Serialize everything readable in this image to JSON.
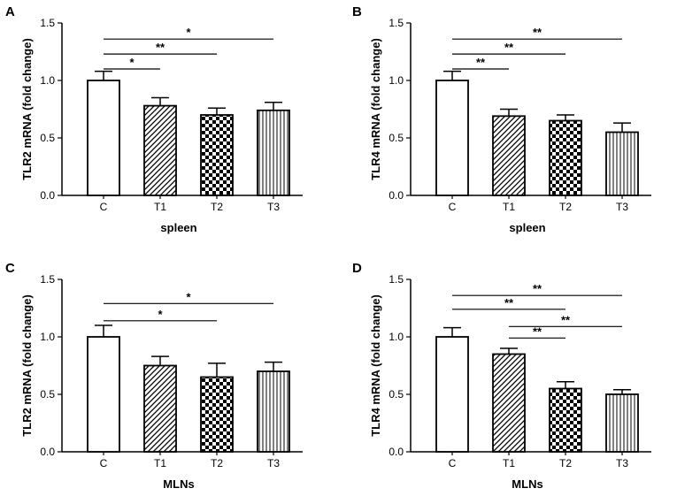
{
  "colors": {
    "ink": "#000000",
    "background": "#ffffff"
  },
  "chart_data": [
    {
      "panel": "A",
      "type": "bar",
      "ylabel": "TLR2 mRNA (fold change)",
      "xlabel": "spleen",
      "categories": [
        "C",
        "T1",
        "T2",
        "T3"
      ],
      "values": [
        1.0,
        0.78,
        0.7,
        0.74
      ],
      "errors": [
        0.08,
        0.07,
        0.06,
        0.07
      ],
      "patterns": [
        "none",
        "diagonal",
        "checker",
        "vertical"
      ],
      "ylim": [
        0,
        1.5
      ],
      "yticks": [
        "0.0",
        "0.5",
        "1.0",
        "1.5"
      ],
      "significance": [
        {
          "from": 0,
          "to": 1,
          "label": "*",
          "level": 1.1
        },
        {
          "from": 0,
          "to": 2,
          "label": "**",
          "level": 1.23
        },
        {
          "from": 0,
          "to": 3,
          "label": "*",
          "level": 1.36
        }
      ]
    },
    {
      "panel": "B",
      "type": "bar",
      "ylabel": "TLR4 mRNA (fold change)",
      "xlabel": "spleen",
      "categories": [
        "C",
        "T1",
        "T2",
        "T3"
      ],
      "values": [
        1.0,
        0.69,
        0.65,
        0.55
      ],
      "errors": [
        0.08,
        0.06,
        0.05,
        0.08
      ],
      "patterns": [
        "none",
        "diagonal",
        "checker",
        "vertical"
      ],
      "ylim": [
        0,
        1.5
      ],
      "yticks": [
        "0.0",
        "0.5",
        "1.0",
        "1.5"
      ],
      "significance": [
        {
          "from": 0,
          "to": 1,
          "label": "**",
          "level": 1.1
        },
        {
          "from": 0,
          "to": 2,
          "label": "**",
          "level": 1.23
        },
        {
          "from": 0,
          "to": 3,
          "label": "**",
          "level": 1.36
        }
      ]
    },
    {
      "panel": "C",
      "type": "bar",
      "ylabel": "TLR2 mRNA (fold change)",
      "xlabel": "MLNs",
      "categories": [
        "C",
        "T1",
        "T2",
        "T3"
      ],
      "values": [
        1.0,
        0.75,
        0.65,
        0.7
      ],
      "errors": [
        0.1,
        0.08,
        0.12,
        0.08
      ],
      "patterns": [
        "none",
        "diagonal",
        "checker",
        "vertical"
      ],
      "ylim": [
        0,
        1.5
      ],
      "yticks": [
        "0.0",
        "0.5",
        "1.0",
        "1.5"
      ],
      "significance": [
        {
          "from": 0,
          "to": 2,
          "label": "*",
          "level": 1.14
        },
        {
          "from": 0,
          "to": 3,
          "label": "*",
          "level": 1.29
        }
      ]
    },
    {
      "panel": "D",
      "type": "bar",
      "ylabel": "TLR4 mRNA (fold change)",
      "xlabel": "MLNs",
      "categories": [
        "C",
        "T1",
        "T2",
        "T3"
      ],
      "values": [
        1.0,
        0.85,
        0.55,
        0.5
      ],
      "errors": [
        0.08,
        0.05,
        0.06,
        0.04
      ],
      "patterns": [
        "none",
        "diagonal",
        "checker",
        "vertical"
      ],
      "ylim": [
        0,
        1.5
      ],
      "yticks": [
        "0.0",
        "0.5",
        "1.0",
        "1.5"
      ],
      "significance": [
        {
          "from": 1,
          "to": 2,
          "label": "**",
          "level": 0.99
        },
        {
          "from": 1,
          "to": 3,
          "label": "**",
          "level": 1.09
        },
        {
          "from": 0,
          "to": 2,
          "label": "**",
          "level": 1.24
        },
        {
          "from": 0,
          "to": 3,
          "label": "**",
          "level": 1.36
        }
      ]
    }
  ]
}
